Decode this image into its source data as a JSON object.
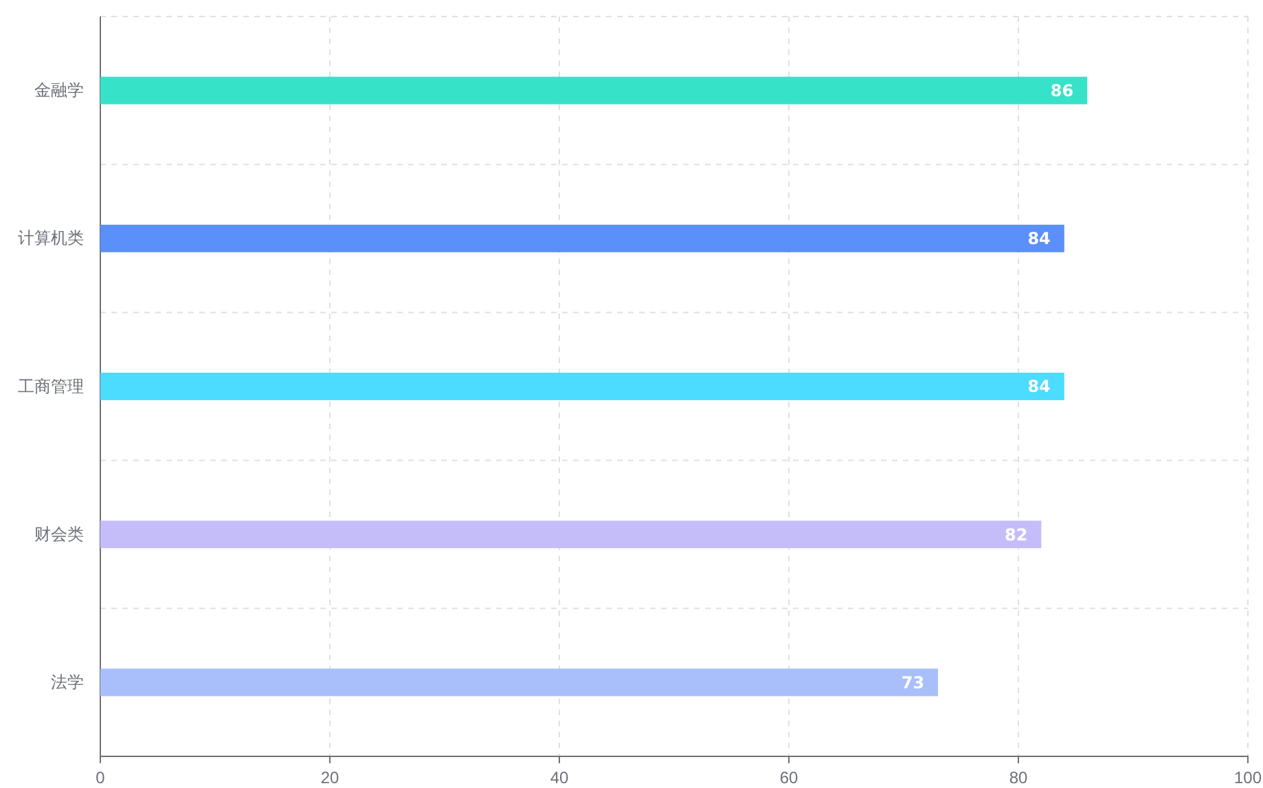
{
  "chart_data": {
    "type": "bar",
    "orientation": "horizontal",
    "categories": [
      "金融学",
      "计算机类",
      "工商管理",
      "财会类",
      "法学"
    ],
    "values": [
      86,
      84,
      84,
      82,
      73
    ],
    "colors": [
      "#36e2c8",
      "#5b8ff9",
      "#4bdcff",
      "#c5bdfa",
      "#a8bffc"
    ],
    "xlim": [
      0,
      100
    ],
    "xticks": [
      0,
      20,
      40,
      60,
      80,
      100
    ],
    "grid": true,
    "data_labels": true
  }
}
